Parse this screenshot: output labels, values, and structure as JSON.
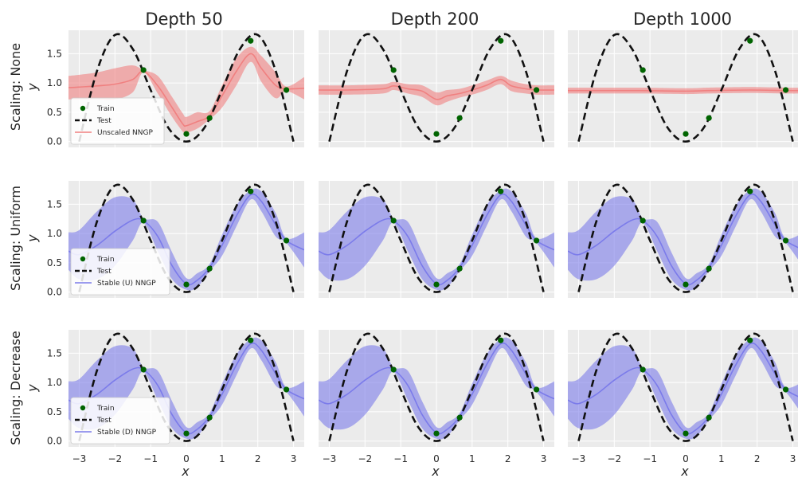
{
  "figure": {
    "column_titles": [
      "Depth 50",
      "Depth 200",
      "Depth 1000"
    ],
    "row_labels": [
      "Scaling: None",
      "Scaling: Uniform",
      "Scaling: Decrease"
    ],
    "xlabel": "x",
    "ylabel": "y",
    "legend_labels": [
      [
        "Train",
        "Test",
        "Unscaled NNGP"
      ],
      [
        "Train",
        "Test",
        "Stable (U) NNGP"
      ],
      [
        "Train",
        "Test",
        "Stable (D) NNGP"
      ]
    ]
  },
  "chart_data": {
    "type": "line",
    "layout": "3x3 grid of small multiples",
    "columns": [
      "Depth 50",
      "Depth 200",
      "Depth 1000"
    ],
    "rows": [
      "Scaling: None",
      "Scaling: Uniform",
      "Scaling: Decrease"
    ],
    "xlabel": "x",
    "ylabel": "y",
    "xlim": [
      -3.3,
      3.3
    ],
    "ylim": [
      -0.1,
      1.9
    ],
    "xticks": [
      -3,
      -2,
      -1,
      0,
      1,
      2,
      3
    ],
    "yticks": [
      0.0,
      0.5,
      1.0,
      1.5
    ],
    "ytick_labels": [
      "0.0",
      "0.5",
      "1.0",
      "1.5"
    ],
    "grid": true,
    "legend_position": "lower-left",
    "colors": {
      "train": "#006400",
      "test": "#111111",
      "unscaled": "#f08080",
      "stable": "#7b7bea"
    },
    "train_points": {
      "x": [
        -1.2,
        0.0,
        0.65,
        1.8,
        2.8
      ],
      "y": [
        1.22,
        0.13,
        0.4,
        1.72,
        0.88
      ]
    },
    "test_curve": {
      "x": [
        -3.0,
        -2.5,
        -2.0,
        -1.5,
        -1.0,
        -0.5,
        0.0,
        0.5,
        1.0,
        1.5,
        2.0,
        2.5,
        3.0
      ],
      "y": [
        0.0,
        1.21,
        1.82,
        1.58,
        0.88,
        0.23,
        0.0,
        0.23,
        0.88,
        1.58,
        1.82,
        1.21,
        0.0
      ]
    },
    "panels": [
      {
        "row": 0,
        "col": 0,
        "series": "Unscaled NNGP",
        "color": "#f08080",
        "x": [
          -3.3,
          -3.0,
          -2.5,
          -2.0,
          -1.5,
          -1.2,
          -0.8,
          -0.4,
          -0.1,
          0.0,
          0.3,
          0.65,
          1.0,
          1.4,
          1.8,
          2.1,
          2.5,
          2.8,
          3.3
        ],
        "mean": [
          0.92,
          0.93,
          0.95,
          0.98,
          1.06,
          1.2,
          0.95,
          0.58,
          0.3,
          0.27,
          0.34,
          0.44,
          0.78,
          1.2,
          1.5,
          1.25,
          0.96,
          0.9,
          0.91
        ],
        "lower": [
          0.72,
          0.72,
          0.72,
          0.72,
          0.84,
          1.18,
          0.82,
          0.42,
          0.17,
          0.15,
          0.22,
          0.38,
          0.58,
          0.96,
          1.36,
          1.02,
          0.74,
          0.86,
          0.72
        ],
        "upper": [
          1.12,
          1.14,
          1.18,
          1.25,
          1.3,
          1.22,
          1.12,
          0.76,
          0.48,
          0.42,
          0.5,
          0.52,
          0.96,
          1.42,
          1.62,
          1.46,
          1.18,
          0.94,
          1.1
        ]
      },
      {
        "row": 0,
        "col": 1,
        "series": "Unscaled NNGP",
        "color": "#f08080",
        "x": [
          -3.3,
          -2.5,
          -1.5,
          -1.2,
          -0.8,
          -0.4,
          0.0,
          0.3,
          0.65,
          1.0,
          1.4,
          1.8,
          2.1,
          2.5,
          2.8,
          3.3
        ],
        "mean": [
          0.88,
          0.88,
          0.9,
          0.95,
          0.9,
          0.86,
          0.72,
          0.78,
          0.82,
          0.88,
          0.96,
          1.06,
          0.95,
          0.9,
          0.88,
          0.88
        ],
        "lower": [
          0.8,
          0.8,
          0.82,
          0.88,
          0.82,
          0.76,
          0.62,
          0.68,
          0.75,
          0.8,
          0.88,
          0.98,
          0.86,
          0.82,
          0.8,
          0.8
        ],
        "upper": [
          0.96,
          0.96,
          0.98,
          1.02,
          0.98,
          0.96,
          0.84,
          0.88,
          0.9,
          0.96,
          1.04,
          1.12,
          1.04,
          0.98,
          0.96,
          0.96
        ]
      },
      {
        "row": 0,
        "col": 2,
        "series": "Unscaled NNGP",
        "color": "#f08080",
        "x": [
          -3.3,
          -2.0,
          -1.2,
          0.0,
          0.65,
          1.8,
          2.8,
          3.3
        ],
        "mean": [
          0.87,
          0.87,
          0.87,
          0.86,
          0.87,
          0.88,
          0.87,
          0.87
        ],
        "lower": [
          0.82,
          0.82,
          0.82,
          0.81,
          0.82,
          0.83,
          0.82,
          0.82
        ],
        "upper": [
          0.92,
          0.92,
          0.92,
          0.91,
          0.92,
          0.93,
          0.92,
          0.92
        ]
      },
      {
        "row": 1,
        "col": 0,
        "series": "Stable (U) NNGP",
        "color": "#7b7bea",
        "x": [
          -3.3,
          -3.0,
          -2.5,
          -2.0,
          -1.5,
          -1.2,
          -0.8,
          -0.4,
          0.0,
          0.3,
          0.65,
          1.0,
          1.4,
          1.8,
          2.1,
          2.5,
          2.8,
          3.3
        ],
        "mean": [
          0.7,
          0.64,
          0.8,
          1.04,
          1.23,
          1.22,
          0.95,
          0.45,
          0.14,
          0.2,
          0.42,
          0.8,
          1.3,
          1.66,
          1.55,
          1.15,
          0.88,
          0.72
        ],
        "lower": [
          0.38,
          0.22,
          0.22,
          0.45,
          0.88,
          1.18,
          0.7,
          0.22,
          0.04,
          0.08,
          0.36,
          0.62,
          1.12,
          1.58,
          1.38,
          0.95,
          0.84,
          0.42
        ],
        "upper": [
          1.02,
          1.06,
          1.38,
          1.62,
          1.58,
          1.26,
          1.2,
          0.68,
          0.24,
          0.32,
          0.48,
          0.98,
          1.48,
          1.74,
          1.72,
          1.35,
          0.92,
          1.02
        ]
      },
      {
        "row": 1,
        "col": 1,
        "series": "Stable (U) NNGP",
        "color": "#7b7bea",
        "x": [
          -3.3,
          -3.0,
          -2.5,
          -2.0,
          -1.5,
          -1.2,
          -0.8,
          -0.4,
          0.0,
          0.3,
          0.65,
          1.0,
          1.4,
          1.8,
          2.1,
          2.5,
          2.8,
          3.3
        ],
        "mean": [
          0.7,
          0.64,
          0.8,
          1.04,
          1.23,
          1.22,
          0.95,
          0.45,
          0.14,
          0.2,
          0.42,
          0.8,
          1.3,
          1.66,
          1.55,
          1.15,
          0.88,
          0.72
        ],
        "lower": [
          0.38,
          0.22,
          0.22,
          0.45,
          0.88,
          1.18,
          0.7,
          0.22,
          0.04,
          0.08,
          0.36,
          0.62,
          1.12,
          1.58,
          1.38,
          0.95,
          0.84,
          0.42
        ],
        "upper": [
          1.02,
          1.06,
          1.38,
          1.62,
          1.58,
          1.26,
          1.2,
          0.68,
          0.24,
          0.32,
          0.48,
          0.98,
          1.48,
          1.74,
          1.72,
          1.35,
          0.92,
          1.02
        ]
      },
      {
        "row": 1,
        "col": 2,
        "series": "Stable (U) NNGP",
        "color": "#7b7bea",
        "x": [
          -3.3,
          -3.0,
          -2.5,
          -2.0,
          -1.5,
          -1.2,
          -0.8,
          -0.4,
          0.0,
          0.3,
          0.65,
          1.0,
          1.4,
          1.8,
          2.1,
          2.5,
          2.8,
          3.3
        ],
        "mean": [
          0.7,
          0.64,
          0.8,
          1.04,
          1.23,
          1.22,
          0.95,
          0.45,
          0.14,
          0.2,
          0.42,
          0.8,
          1.3,
          1.66,
          1.55,
          1.15,
          0.88,
          0.72
        ],
        "lower": [
          0.38,
          0.22,
          0.22,
          0.45,
          0.88,
          1.18,
          0.7,
          0.22,
          0.04,
          0.08,
          0.36,
          0.62,
          1.12,
          1.58,
          1.38,
          0.95,
          0.84,
          0.42
        ],
        "upper": [
          1.02,
          1.06,
          1.38,
          1.62,
          1.58,
          1.26,
          1.2,
          0.68,
          0.24,
          0.32,
          0.48,
          0.98,
          1.48,
          1.74,
          1.72,
          1.35,
          0.92,
          1.02
        ]
      },
      {
        "row": 2,
        "col": 0,
        "series": "Stable (D) NNGP",
        "color": "#7b7bea",
        "x": [
          -3.3,
          -3.0,
          -2.5,
          -2.0,
          -1.5,
          -1.2,
          -0.8,
          -0.4,
          0.0,
          0.3,
          0.65,
          1.0,
          1.4,
          1.8,
          2.1,
          2.5,
          2.8,
          3.3
        ],
        "mean": [
          0.7,
          0.64,
          0.8,
          1.04,
          1.23,
          1.22,
          0.95,
          0.45,
          0.14,
          0.2,
          0.42,
          0.8,
          1.3,
          1.66,
          1.55,
          1.15,
          0.88,
          0.72
        ],
        "lower": [
          0.38,
          0.22,
          0.22,
          0.45,
          0.88,
          1.18,
          0.7,
          0.22,
          0.04,
          0.08,
          0.36,
          0.62,
          1.12,
          1.58,
          1.38,
          0.95,
          0.84,
          0.42
        ],
        "upper": [
          1.02,
          1.06,
          1.38,
          1.62,
          1.58,
          1.26,
          1.2,
          0.68,
          0.24,
          0.32,
          0.48,
          0.98,
          1.48,
          1.74,
          1.72,
          1.35,
          0.92,
          1.02
        ]
      },
      {
        "row": 2,
        "col": 1,
        "series": "Stable (D) NNGP",
        "color": "#7b7bea",
        "x": [
          -3.3,
          -3.0,
          -2.5,
          -2.0,
          -1.5,
          -1.2,
          -0.8,
          -0.4,
          0.0,
          0.3,
          0.65,
          1.0,
          1.4,
          1.8,
          2.1,
          2.5,
          2.8,
          3.3
        ],
        "mean": [
          0.7,
          0.64,
          0.8,
          1.04,
          1.23,
          1.22,
          0.95,
          0.45,
          0.14,
          0.2,
          0.42,
          0.8,
          1.3,
          1.66,
          1.55,
          1.15,
          0.88,
          0.72
        ],
        "lower": [
          0.38,
          0.22,
          0.22,
          0.45,
          0.88,
          1.18,
          0.7,
          0.22,
          0.04,
          0.08,
          0.36,
          0.62,
          1.12,
          1.58,
          1.38,
          0.95,
          0.84,
          0.42
        ],
        "upper": [
          1.02,
          1.06,
          1.38,
          1.62,
          1.58,
          1.26,
          1.2,
          0.68,
          0.24,
          0.32,
          0.48,
          0.98,
          1.48,
          1.74,
          1.72,
          1.35,
          0.92,
          1.02
        ]
      },
      {
        "row": 2,
        "col": 2,
        "series": "Stable (D) NNGP",
        "color": "#7b7bea",
        "x": [
          -3.3,
          -3.0,
          -2.5,
          -2.0,
          -1.5,
          -1.2,
          -0.8,
          -0.4,
          0.0,
          0.3,
          0.65,
          1.0,
          1.4,
          1.8,
          2.1,
          2.5,
          2.8,
          3.3
        ],
        "mean": [
          0.7,
          0.64,
          0.8,
          1.04,
          1.23,
          1.22,
          0.95,
          0.45,
          0.14,
          0.2,
          0.42,
          0.8,
          1.3,
          1.66,
          1.55,
          1.15,
          0.88,
          0.72
        ],
        "lower": [
          0.38,
          0.22,
          0.22,
          0.45,
          0.88,
          1.18,
          0.7,
          0.22,
          0.04,
          0.08,
          0.36,
          0.62,
          1.12,
          1.58,
          1.38,
          0.95,
          0.84,
          0.42
        ],
        "upper": [
          1.02,
          1.06,
          1.38,
          1.62,
          1.58,
          1.26,
          1.2,
          0.68,
          0.24,
          0.32,
          0.48,
          0.98,
          1.48,
          1.74,
          1.72,
          1.35,
          0.92,
          1.02
        ]
      }
    ]
  }
}
